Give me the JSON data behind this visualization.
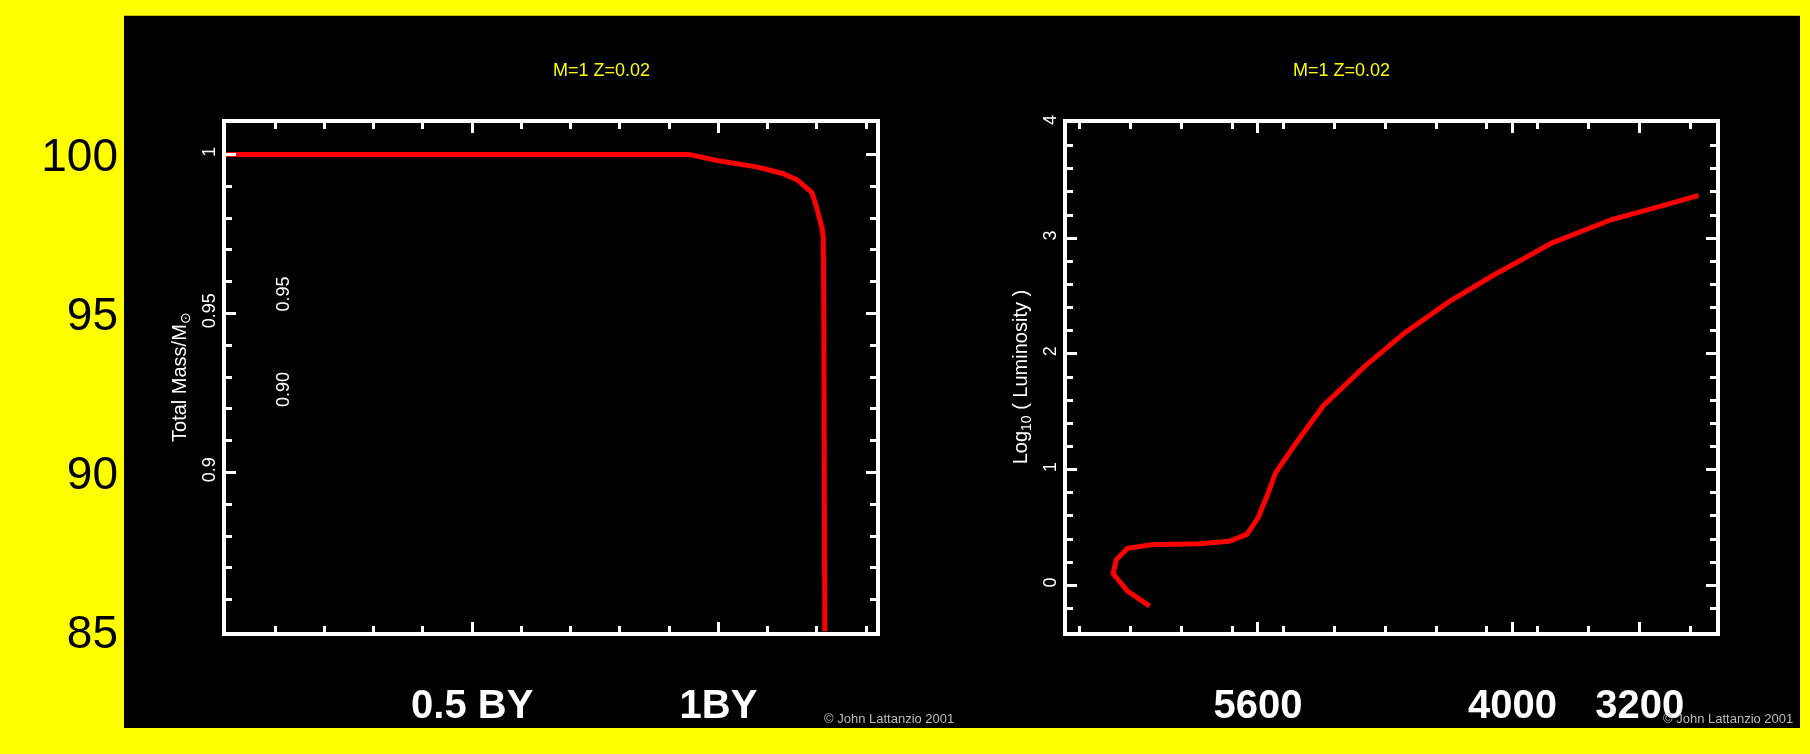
{
  "chart_data": [
    {
      "type": "line",
      "title": "M=1 Z=0.02",
      "ylabel": "Total Mass/M$_{⊙}$",
      "xlim": [
        0,
        1.32
      ],
      "xticks": [
        {
          "value": 0.5,
          "label": "0.5 BY"
        },
        {
          "value": 1,
          "label": "1BY"
        }
      ],
      "ylim": [
        0.85,
        1.01
      ],
      "yticks": [
        1,
        0.95,
        0.9
      ],
      "y2lim": [
        85,
        101
      ],
      "y2ticks": [
        100,
        95,
        90,
        85
      ],
      "grid": false,
      "marker": "none",
      "line_style": "solid",
      "series": [
        {
          "color": "#ff0000",
          "x": [
            0,
            0.94,
            1.0,
            1.08,
            1.13,
            1.16,
            1.19,
            1.2,
            1.21,
            1.213,
            1.214,
            1.215,
            1.216
          ],
          "values": [
            1,
            1,
            0.998,
            0.996,
            0.994,
            0.992,
            0.988,
            0.983,
            0.977,
            0.974,
            0.95,
            0.9,
            0.85
          ]
        }
      ],
      "annotations": [
        "0.95",
        "0.90",
        "© John Lattanzio 2001"
      ]
    },
    {
      "type": "line",
      "title": "M=1 Z=0.02",
      "ylabel": "Log$_{10}$ ( Luminosity )",
      "xlim": [
        6800,
        2720
      ],
      "xticks": [
        5600,
        4000,
        3200
      ],
      "ylim": [
        -0.4,
        4
      ],
      "yticks": [
        0,
        1,
        2,
        3,
        4
      ],
      "grid": false,
      "marker": "none",
      "line_style": "solid",
      "series": [
        {
          "color": "#ff0000",
          "x": [
            6280,
            6420,
            6510,
            6490,
            6420,
            6270,
            5970,
            5780,
            5670,
            5600,
            5540,
            5490,
            5370,
            5190,
            4930,
            4680,
            4400,
            4120,
            3750,
            3380,
            3010,
            2830
          ],
          "values": [
            -0.18,
            -0.05,
            0.1,
            0.22,
            0.32,
            0.35,
            0.36,
            0.38,
            0.44,
            0.58,
            0.78,
            0.97,
            1.21,
            1.55,
            1.89,
            2.18,
            2.45,
            2.68,
            2.96,
            3.16,
            3.3,
            3.37
          ]
        }
      ],
      "annotations": [
        "© John Lattanzio 2001"
      ]
    }
  ]
}
